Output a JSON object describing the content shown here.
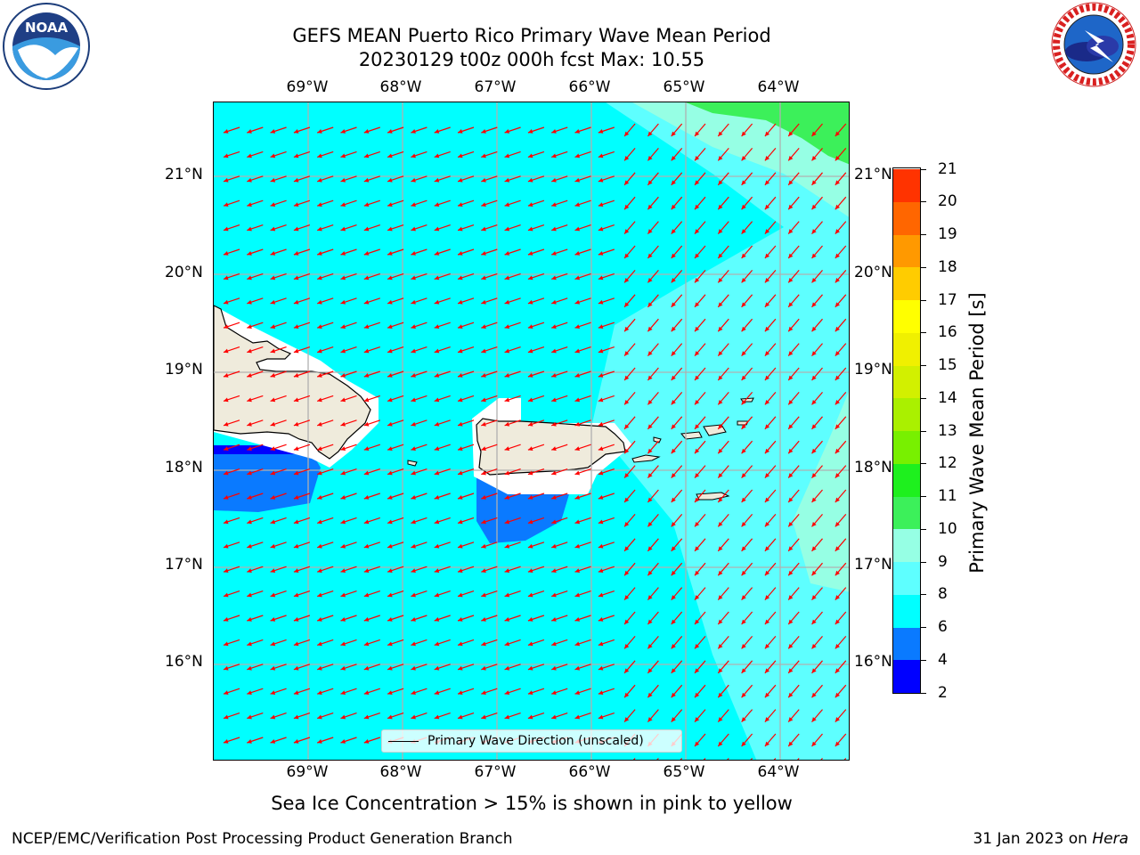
{
  "title": {
    "line1": "GEFS MEAN Puerto Rico Primary Wave Mean Period",
    "line2": "20230129 t00z 000h fcst   Max: 10.55"
  },
  "map": {
    "lon_ticks": [
      "69°W",
      "68°W",
      "67°W",
      "66°W",
      "65°W",
      "64°W"
    ],
    "lat_ticks": [
      "21°N",
      "20°N",
      "19°N",
      "18°N",
      "17°N",
      "16°N"
    ],
    "legend_label": "Primary Wave Direction (unscaled)",
    "land_color": "#efebdc",
    "arrow_color": "#ff0000"
  },
  "colorbar": {
    "title": "Primary Wave Mean Period [s]",
    "ticks": [
      "2",
      "4",
      "6",
      "8",
      "9",
      "10",
      "11",
      "12",
      "13",
      "14",
      "15",
      "16",
      "17",
      "18",
      "19",
      "20",
      "21"
    ],
    "colors": [
      "#0000ff",
      "#0a7aff",
      "#00ffff",
      "#5effff",
      "#96ffe4",
      "#3cf05a",
      "#1ef01e",
      "#78f000",
      "#aaf000",
      "#d2f000",
      "#f0f000",
      "#ffff00",
      "#ffcc00",
      "#ff9900",
      "#ff6600",
      "#ff3300",
      "#ff0000"
    ]
  },
  "footnote": "Sea Ice Concentration > 15% is shown in pink to yellow",
  "credit": "NCEP/EMC/Verification Post Processing Product Generation Branch",
  "run_date": "31 Jan 2023 on ",
  "host": "Hera",
  "logos": {
    "noaa_text": "NOAA",
    "nws_text": "NATIONAL WEATHER SERVICE"
  }
}
